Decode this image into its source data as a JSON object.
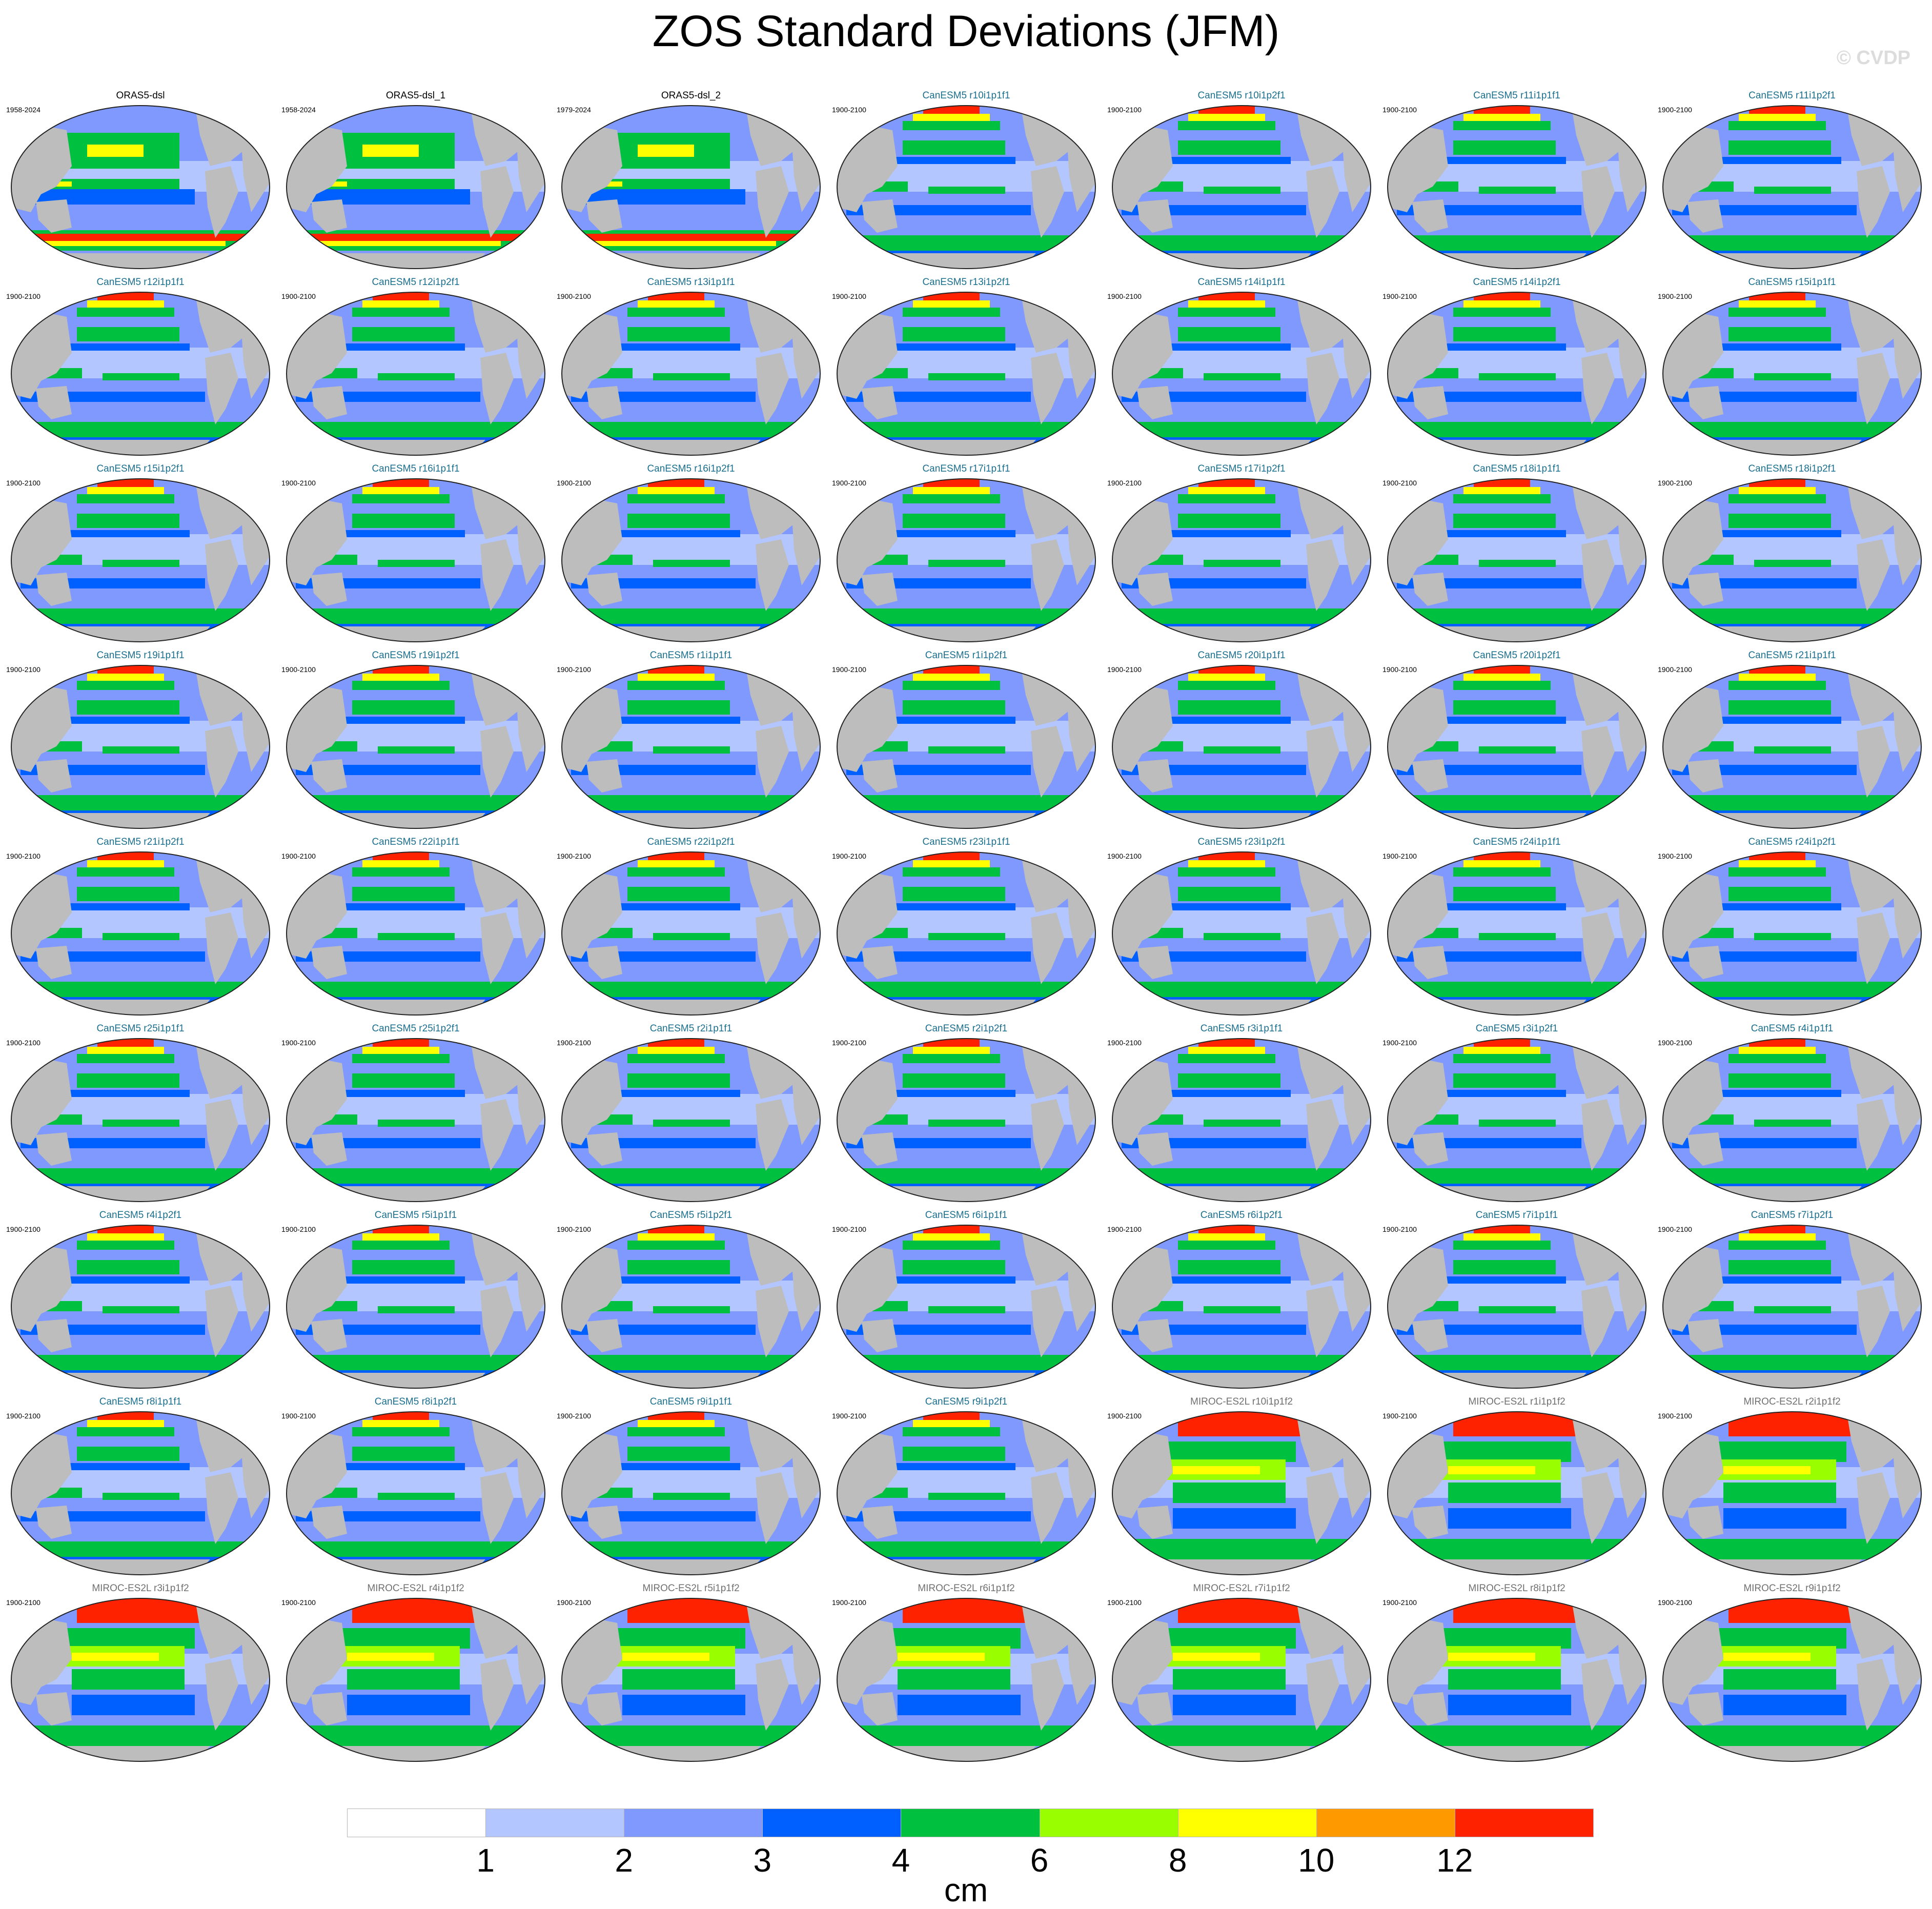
{
  "title": "ZOS Standard Deviations (JFM)",
  "watermark": "© CVDP",
  "units": "cm",
  "panels": [
    {
      "name": "ORAS5-dsl",
      "years": "1958-2024",
      "type": "obs"
    },
    {
      "name": "ORAS5-dsl_1",
      "years": "1958-2024",
      "type": "obs"
    },
    {
      "name": "ORAS5-dsl_2",
      "years": "1979-2024",
      "type": "obs"
    },
    {
      "name": "CanESM5 r10i1p1f1",
      "years": "1900-2100",
      "type": "can"
    },
    {
      "name": "CanESM5 r10i1p2f1",
      "years": "1900-2100",
      "type": "can"
    },
    {
      "name": "CanESM5 r11i1p1f1",
      "years": "1900-2100",
      "type": "can"
    },
    {
      "name": "CanESM5 r11i1p2f1",
      "years": "1900-2100",
      "type": "can"
    },
    {
      "name": "CanESM5 r12i1p1f1",
      "years": "1900-2100",
      "type": "can"
    },
    {
      "name": "CanESM5 r12i1p2f1",
      "years": "1900-2100",
      "type": "can"
    },
    {
      "name": "CanESM5 r13i1p1f1",
      "years": "1900-2100",
      "type": "can"
    },
    {
      "name": "CanESM5 r13i1p2f1",
      "years": "1900-2100",
      "type": "can"
    },
    {
      "name": "CanESM5 r14i1p1f1",
      "years": "1900-2100",
      "type": "can"
    },
    {
      "name": "CanESM5 r14i1p2f1",
      "years": "1900-2100",
      "type": "can"
    },
    {
      "name": "CanESM5 r15i1p1f1",
      "years": "1900-2100",
      "type": "can"
    },
    {
      "name": "CanESM5 r15i1p2f1",
      "years": "1900-2100",
      "type": "can"
    },
    {
      "name": "CanESM5 r16i1p1f1",
      "years": "1900-2100",
      "type": "can"
    },
    {
      "name": "CanESM5 r16i1p2f1",
      "years": "1900-2100",
      "type": "can"
    },
    {
      "name": "CanESM5 r17i1p1f1",
      "years": "1900-2100",
      "type": "can"
    },
    {
      "name": "CanESM5 r17i1p2f1",
      "years": "1900-2100",
      "type": "can"
    },
    {
      "name": "CanESM5 r18i1p1f1",
      "years": "1900-2100",
      "type": "can"
    },
    {
      "name": "CanESM5 r18i1p2f1",
      "years": "1900-2100",
      "type": "can"
    },
    {
      "name": "CanESM5 r19i1p1f1",
      "years": "1900-2100",
      "type": "can"
    },
    {
      "name": "CanESM5 r19i1p2f1",
      "years": "1900-2100",
      "type": "can"
    },
    {
      "name": "CanESM5 r1i1p1f1",
      "years": "1900-2100",
      "type": "can"
    },
    {
      "name": "CanESM5 r1i1p2f1",
      "years": "1900-2100",
      "type": "can"
    },
    {
      "name": "CanESM5 r20i1p1f1",
      "years": "1900-2100",
      "type": "can"
    },
    {
      "name": "CanESM5 r20i1p2f1",
      "years": "1900-2100",
      "type": "can"
    },
    {
      "name": "CanESM5 r21i1p1f1",
      "years": "1900-2100",
      "type": "can"
    },
    {
      "name": "CanESM5 r21i1p2f1",
      "years": "1900-2100",
      "type": "can"
    },
    {
      "name": "CanESM5 r22i1p1f1",
      "years": "1900-2100",
      "type": "can"
    },
    {
      "name": "CanESM5 r22i1p2f1",
      "years": "1900-2100",
      "type": "can"
    },
    {
      "name": "CanESM5 r23i1p1f1",
      "years": "1900-2100",
      "type": "can"
    },
    {
      "name": "CanESM5 r23i1p2f1",
      "years": "1900-2100",
      "type": "can"
    },
    {
      "name": "CanESM5 r24i1p1f1",
      "years": "1900-2100",
      "type": "can"
    },
    {
      "name": "CanESM5 r24i1p2f1",
      "years": "1900-2100",
      "type": "can"
    },
    {
      "name": "CanESM5 r25i1p1f1",
      "years": "1900-2100",
      "type": "can"
    },
    {
      "name": "CanESM5 r25i1p2f1",
      "years": "1900-2100",
      "type": "can"
    },
    {
      "name": "CanESM5 r2i1p1f1",
      "years": "1900-2100",
      "type": "can"
    },
    {
      "name": "CanESM5 r2i1p2f1",
      "years": "1900-2100",
      "type": "can"
    },
    {
      "name": "CanESM5 r3i1p1f1",
      "years": "1900-2100",
      "type": "can"
    },
    {
      "name": "CanESM5 r3i1p2f1",
      "years": "1900-2100",
      "type": "can"
    },
    {
      "name": "CanESM5 r4i1p1f1",
      "years": "1900-2100",
      "type": "can"
    },
    {
      "name": "CanESM5 r4i1p2f1",
      "years": "1900-2100",
      "type": "can"
    },
    {
      "name": "CanESM5 r5i1p1f1",
      "years": "1900-2100",
      "type": "can"
    },
    {
      "name": "CanESM5 r5i1p2f1",
      "years": "1900-2100",
      "type": "can"
    },
    {
      "name": "CanESM5 r6i1p1f1",
      "years": "1900-2100",
      "type": "can"
    },
    {
      "name": "CanESM5 r6i1p2f1",
      "years": "1900-2100",
      "type": "can"
    },
    {
      "name": "CanESM5 r7i1p1f1",
      "years": "1900-2100",
      "type": "can"
    },
    {
      "name": "CanESM5 r7i1p2f1",
      "years": "1900-2100",
      "type": "can"
    },
    {
      "name": "CanESM5 r8i1p1f1",
      "years": "1900-2100",
      "type": "can"
    },
    {
      "name": "CanESM5 r8i1p2f1",
      "years": "1900-2100",
      "type": "can"
    },
    {
      "name": "CanESM5 r9i1p1f1",
      "years": "1900-2100",
      "type": "can"
    },
    {
      "name": "CanESM5 r9i1p2f1",
      "years": "1900-2100",
      "type": "can"
    },
    {
      "name": "MIROC-ES2L r10i1p1f2",
      "years": "1900-2100",
      "type": "miroc"
    },
    {
      "name": "MIROC-ES2L r1i1p1f2",
      "years": "1900-2100",
      "type": "miroc"
    },
    {
      "name": "MIROC-ES2L r2i1p1f2",
      "years": "1900-2100",
      "type": "miroc"
    },
    {
      "name": "MIROC-ES2L r3i1p1f2",
      "years": "1900-2100",
      "type": "miroc"
    },
    {
      "name": "MIROC-ES2L r4i1p1f2",
      "years": "1900-2100",
      "type": "miroc"
    },
    {
      "name": "MIROC-ES2L r5i1p1f2",
      "years": "1900-2100",
      "type": "miroc"
    },
    {
      "name": "MIROC-ES2L r6i1p1f2",
      "years": "1900-2100",
      "type": "miroc"
    },
    {
      "name": "MIROC-ES2L r7i1p1f2",
      "years": "1900-2100",
      "type": "miroc"
    },
    {
      "name": "MIROC-ES2L r8i1p1f2",
      "years": "1900-2100",
      "type": "miroc"
    },
    {
      "name": "MIROC-ES2L r9i1p1f2",
      "years": "1900-2100",
      "type": "miroc"
    }
  ],
  "colorbar": {
    "colors": [
      "#ffffff",
      "#b3c6ff",
      "#8099ff",
      "#0060ff",
      "#00c040",
      "#99ff00",
      "#ffff00",
      "#ff9900",
      "#ff2200"
    ],
    "labels": [
      "1",
      "2",
      "3",
      "4",
      "6",
      "8",
      "10",
      "12"
    ]
  },
  "map_colors": {
    "land": "#bdbdbd",
    "outline": "#222222"
  }
}
